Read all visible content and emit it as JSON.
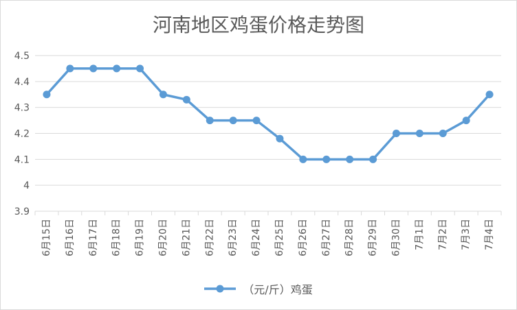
{
  "chart_data": {
    "type": "line",
    "title": "河南地区鸡蛋价格走势图",
    "xlabel": "",
    "ylabel": "",
    "ylim": [
      3.9,
      4.5
    ],
    "yticks": [
      "3.9",
      "4",
      "4.1",
      "4.2",
      "4.3",
      "4.4",
      "4.5"
    ],
    "grid": true,
    "legend_position": "bottom",
    "categories": [
      "6月15日",
      "6月16日",
      "6月17日",
      "6月18日",
      "6月19日",
      "6月20日",
      "6月21日",
      "6月22日",
      "6月23日",
      "6月24日",
      "6月25日",
      "6月26日",
      "6月27日",
      "6月28日",
      "6月29日",
      "6月30日",
      "7月1日",
      "7月2日",
      "7月3日",
      "7月4日"
    ],
    "series": [
      {
        "name": "（元/斤）鸡蛋",
        "color": "#5b9bd5",
        "values": [
          4.35,
          4.45,
          4.45,
          4.45,
          4.45,
          4.35,
          4.33,
          4.25,
          4.25,
          4.25,
          4.18,
          4.1,
          4.1,
          4.1,
          4.1,
          4.2,
          4.2,
          4.2,
          4.25,
          4.35
        ]
      }
    ]
  },
  "colors": {
    "grid": "#d9d9d9",
    "text": "#595959"
  }
}
